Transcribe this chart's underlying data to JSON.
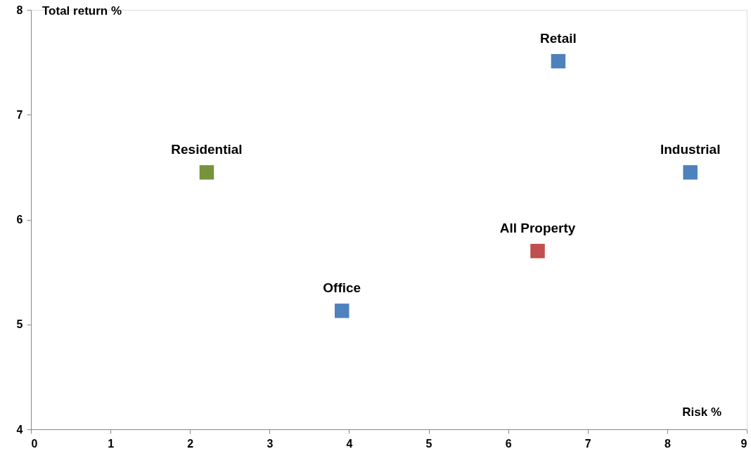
{
  "chart_data": {
    "type": "scatter",
    "xlabel": "Risk %",
    "ylabel": "Total return %",
    "marker": "square",
    "grid": false,
    "xlim": [
      0,
      9
    ],
    "xticks": [
      0,
      1,
      2,
      3,
      4,
      5,
      6,
      7,
      8,
      9
    ],
    "ylim": [
      4,
      8
    ],
    "yticks": [
      4,
      5,
      6,
      7,
      8
    ],
    "series": [
      {
        "name": "Retail",
        "color": "#4f81bd",
        "x": [
          6.63
        ],
        "values": [
          7.51
        ]
      },
      {
        "name": "Residential",
        "color": "#77933c",
        "x": [
          2.21
        ],
        "values": [
          6.45
        ]
      },
      {
        "name": "Industrial",
        "color": "#4f81bd",
        "x": [
          8.29
        ],
        "values": [
          6.45
        ]
      },
      {
        "name": "All Property",
        "color": "#c0504d",
        "x": [
          6.37
        ],
        "values": [
          5.7
        ]
      },
      {
        "name": "Office",
        "color": "#4f81bd",
        "x": [
          3.91
        ],
        "values": [
          5.13
        ]
      }
    ]
  }
}
